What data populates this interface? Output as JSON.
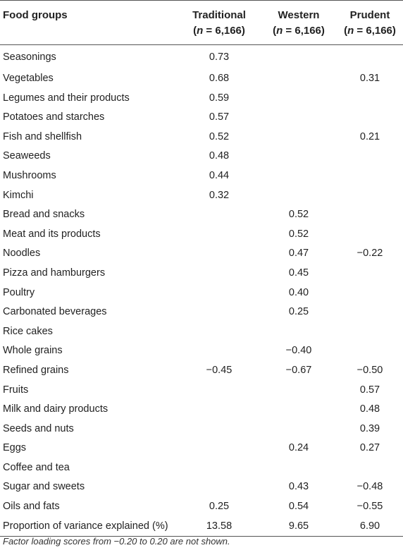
{
  "header": {
    "food": "Food groups",
    "traditional": "Traditional",
    "traditional_n_italic": "n",
    "traditional_n_rest": " = 6,166)",
    "western": "Western",
    "western_n_italic": "n",
    "western_n_rest": " = 6,166)",
    "prudent": "Prudent",
    "prudent_n_italic": "n",
    "prudent_n_rest": " = 6,166)"
  },
  "rows": [
    {
      "food": "Seasonings",
      "traditional": "0.73",
      "western": "",
      "prudent": ""
    },
    {
      "food": "Vegetables",
      "traditional": "0.68",
      "western": "",
      "prudent": "0.31"
    },
    {
      "food": "Legumes and their products",
      "traditional": "0.59",
      "western": "",
      "prudent": ""
    },
    {
      "food": "Potatoes and starches",
      "traditional": "0.57",
      "western": "",
      "prudent": ""
    },
    {
      "food": "Fish and shellfish",
      "traditional": "0.52",
      "western": "",
      "prudent": "0.21"
    },
    {
      "food": "Seaweeds",
      "traditional": "0.48",
      "western": "",
      "prudent": ""
    },
    {
      "food": "Mushrooms",
      "traditional": "0.44",
      "western": "",
      "prudent": ""
    },
    {
      "food": "Kimchi",
      "traditional": "0.32",
      "western": "",
      "prudent": ""
    },
    {
      "food": "Bread and snacks",
      "traditional": "",
      "western": "0.52",
      "prudent": ""
    },
    {
      "food": "Meat and its products",
      "traditional": "",
      "western": "0.52",
      "prudent": ""
    },
    {
      "food": "Noodles",
      "traditional": "",
      "western": "0.47",
      "prudent": "−0.22"
    },
    {
      "food": "Pizza and hamburgers",
      "traditional": "",
      "western": "0.45",
      "prudent": ""
    },
    {
      "food": "Poultry",
      "traditional": "",
      "western": "0.40",
      "prudent": ""
    },
    {
      "food": "Carbonated beverages",
      "traditional": "",
      "western": "0.25",
      "prudent": ""
    },
    {
      "food": "Rice cakes",
      "traditional": "",
      "western": "",
      "prudent": ""
    },
    {
      "food": "Whole grains",
      "traditional": "",
      "western": "−0.40",
      "prudent": ""
    },
    {
      "food": "Refined grains",
      "traditional": "−0.45",
      "western": "−0.67",
      "prudent": "−0.50"
    },
    {
      "food": "Fruits",
      "traditional": "",
      "western": "",
      "prudent": "0.57"
    },
    {
      "food": "Milk and dairy products",
      "traditional": "",
      "western": "",
      "prudent": "0.48"
    },
    {
      "food": "Seeds and nuts",
      "traditional": "",
      "western": "",
      "prudent": "0.39"
    },
    {
      "food": "Eggs",
      "traditional": "",
      "western": "0.24",
      "prudent": "0.27"
    },
    {
      "food": "Coffee and tea",
      "traditional": "",
      "western": "",
      "prudent": ""
    },
    {
      "food": "Sugar and sweets",
      "traditional": "",
      "western": "0.43",
      "prudent": "−0.48"
    },
    {
      "food": "Oils and fats",
      "traditional": "0.25",
      "western": "0.54",
      "prudent": "−0.55"
    },
    {
      "food": "Proportion of variance explained (%)",
      "traditional": "13.58",
      "western": "9.65",
      "prudent": "6.90"
    }
  ],
  "footnote": "Factor loading scores from −0.20 to 0.20 are not shown."
}
